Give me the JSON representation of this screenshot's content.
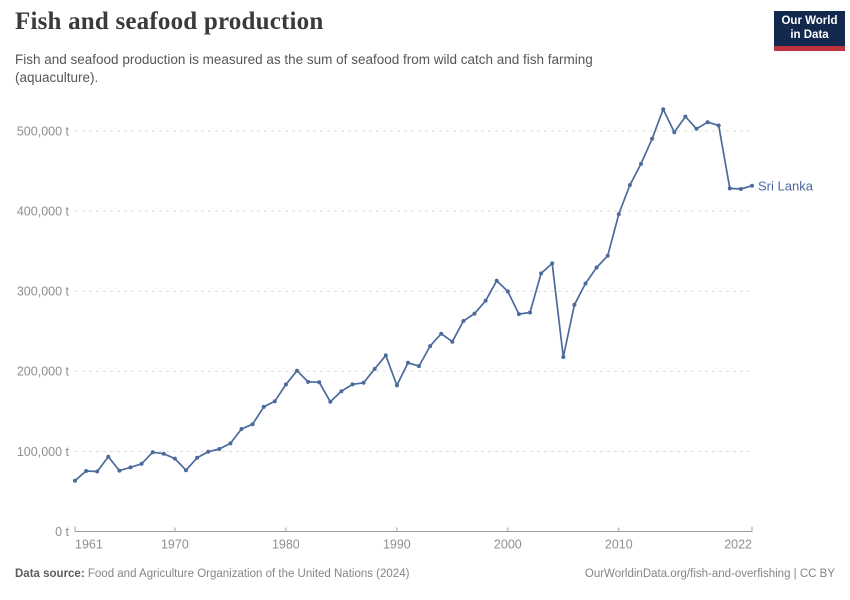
{
  "header": {
    "title": "Fish and seafood production",
    "subtitle": "Fish and seafood production is measured as the sum of seafood from wild catch and fish farming (aquaculture).",
    "logo": {
      "line1": "Our World",
      "line2": "in Data",
      "bg_color": "#12294d",
      "accent_color": "#c0333e"
    }
  },
  "chart_data": {
    "type": "line",
    "title": "Fish and seafood production",
    "unit": "t",
    "xlabel": "",
    "ylabel": "",
    "x_start_year": 1961,
    "x_end_year": 2022,
    "xticks": [
      1961,
      1970,
      1980,
      1990,
      2000,
      2010,
      2022
    ],
    "yticks": [
      {
        "value": 0,
        "label": "0 t"
      },
      {
        "value": 100000,
        "label": "100,000 t"
      },
      {
        "value": 200000,
        "label": "200,000 t"
      },
      {
        "value": 300000,
        "label": "300,000 t"
      },
      {
        "value": 400000,
        "label": "400,000 t"
      },
      {
        "value": 500000,
        "label": "500,000 t"
      }
    ],
    "ylim": [
      0,
      550000
    ],
    "grid": "horizontal-dashed",
    "grid_color": "#dcdcdc",
    "axis_color": "#a0a0a0",
    "tick_label_color": "#8f8f8f",
    "legend_position": "end-of-line",
    "series": [
      {
        "name": "Sri Lanka",
        "color": "#4C6A9C",
        "values": [
          63400,
          75500,
          74900,
          93400,
          76000,
          80000,
          84500,
          99000,
          97000,
          91000,
          76500,
          92000,
          99500,
          103000,
          110000,
          128000,
          134000,
          155500,
          162500,
          183500,
          200700,
          186800,
          186400,
          162000,
          175200,
          183600,
          185600,
          203000,
          219800,
          182400,
          210600,
          206500,
          231500,
          246900,
          237000,
          262800,
          272000,
          288000,
          313000,
          299700,
          271400,
          273400,
          322200,
          334700,
          217800,
          283000,
          309600,
          329600,
          344200,
          396200,
          432600,
          458900,
          490200,
          527100,
          498500,
          518000,
          502700,
          511000,
          506900,
          428300,
          427600,
          431700
        ]
      }
    ]
  },
  "footer": {
    "source_label": "Data source:",
    "source_text": "Food and Agriculture Organization of the United Nations (2024)",
    "credit": "OurWorldinData.org/fish-and-overfishing | CC BY"
  }
}
